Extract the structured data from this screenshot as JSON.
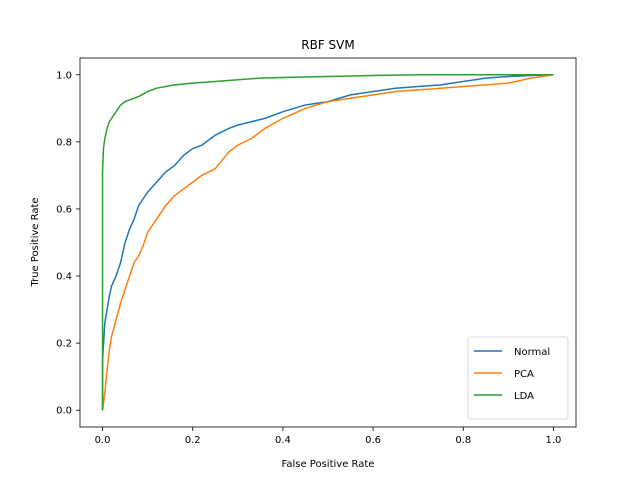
{
  "chart_data": {
    "type": "line",
    "title": "RBF SVM",
    "xlabel": "False Positive Rate",
    "ylabel": "True Positive Rate",
    "xlim": [
      -0.05,
      1.05
    ],
    "ylim": [
      -0.05,
      1.05
    ],
    "xticks": [
      0.0,
      0.2,
      0.4,
      0.6,
      0.8,
      1.0
    ],
    "xtick_labels": [
      "0.0",
      "0.2",
      "0.4",
      "0.6",
      "0.8",
      "1.0"
    ],
    "yticks": [
      0.0,
      0.2,
      0.4,
      0.6,
      0.8,
      1.0
    ],
    "ytick_labels": [
      "0.0",
      "0.2",
      "0.4",
      "0.6",
      "0.8",
      "1.0"
    ],
    "grid": false,
    "legend_position": "lower-right",
    "series": [
      {
        "name": "Normal",
        "color": "#1f77b4",
        "x": [
          0.0,
          0.0,
          0.005,
          0.01,
          0.015,
          0.02,
          0.03,
          0.04,
          0.05,
          0.06,
          0.07,
          0.08,
          0.09,
          0.1,
          0.12,
          0.14,
          0.16,
          0.18,
          0.2,
          0.22,
          0.25,
          0.28,
          0.3,
          0.33,
          0.36,
          0.4,
          0.45,
          0.5,
          0.55,
          0.6,
          0.65,
          0.7,
          0.75,
          0.8,
          0.85,
          0.9,
          0.95,
          1.0
        ],
        "y": [
          0.0,
          0.15,
          0.26,
          0.3,
          0.34,
          0.37,
          0.4,
          0.44,
          0.5,
          0.54,
          0.57,
          0.61,
          0.63,
          0.65,
          0.68,
          0.71,
          0.73,
          0.76,
          0.78,
          0.79,
          0.82,
          0.84,
          0.85,
          0.86,
          0.87,
          0.89,
          0.91,
          0.92,
          0.94,
          0.95,
          0.96,
          0.965,
          0.97,
          0.98,
          0.99,
          0.995,
          0.998,
          1.0
        ]
      },
      {
        "name": "PCA",
        "color": "#ff7f0e",
        "x": [
          0.0,
          0.005,
          0.01,
          0.015,
          0.02,
          0.03,
          0.04,
          0.05,
          0.06,
          0.07,
          0.08,
          0.09,
          0.1,
          0.12,
          0.14,
          0.16,
          0.18,
          0.2,
          0.22,
          0.25,
          0.28,
          0.3,
          0.33,
          0.36,
          0.4,
          0.45,
          0.5,
          0.55,
          0.6,
          0.65,
          0.7,
          0.75,
          0.8,
          0.85,
          0.9,
          0.95,
          1.0
        ],
        "y": [
          0.0,
          0.05,
          0.12,
          0.18,
          0.22,
          0.27,
          0.32,
          0.36,
          0.4,
          0.44,
          0.46,
          0.49,
          0.53,
          0.57,
          0.61,
          0.64,
          0.66,
          0.68,
          0.7,
          0.72,
          0.77,
          0.79,
          0.81,
          0.84,
          0.87,
          0.9,
          0.92,
          0.93,
          0.94,
          0.95,
          0.955,
          0.96,
          0.965,
          0.97,
          0.975,
          0.99,
          1.0
        ]
      },
      {
        "name": "LDA",
        "color": "#2ca02c",
        "x": [
          0.0,
          0.0,
          0.002,
          0.005,
          0.01,
          0.015,
          0.02,
          0.03,
          0.04,
          0.05,
          0.06,
          0.07,
          0.08,
          0.1,
          0.12,
          0.14,
          0.16,
          0.2,
          0.25,
          0.3,
          0.35,
          0.4,
          0.5,
          0.6,
          0.7,
          0.8,
          0.9,
          1.0
        ],
        "y": [
          0.0,
          0.71,
          0.78,
          0.81,
          0.84,
          0.86,
          0.87,
          0.89,
          0.91,
          0.92,
          0.925,
          0.93,
          0.935,
          0.95,
          0.96,
          0.965,
          0.97,
          0.975,
          0.98,
          0.985,
          0.99,
          0.992,
          0.995,
          0.998,
          1.0,
          1.0,
          1.0,
          1.0
        ]
      }
    ]
  }
}
